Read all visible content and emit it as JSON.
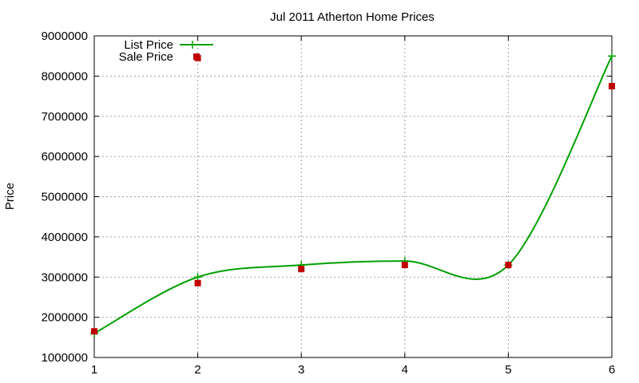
{
  "chart_data": {
    "type": "line",
    "title": "Jul 2011 Atherton Home Prices",
    "xlabel": "",
    "ylabel": "Price",
    "x": [
      1,
      2,
      3,
      4,
      5,
      6
    ],
    "xlim": [
      1,
      6
    ],
    "ylim": [
      1000000,
      9000000
    ],
    "xticks": [
      "1",
      "2",
      "3",
      "4",
      "5",
      "6"
    ],
    "yticks": [
      "1000000",
      "2000000",
      "3000000",
      "4000000",
      "5000000",
      "6000000",
      "7000000",
      "8000000",
      "9000000"
    ],
    "grid": true,
    "legend_position": "top-left",
    "series": [
      {
        "name": "List Price",
        "style": "smooth line with plus markers",
        "color": "#00a000",
        "values": [
          1600000,
          3000000,
          3300000,
          3400000,
          3300000,
          8500000
        ]
      },
      {
        "name": "Sale Price",
        "style": "square markers",
        "color": "#c00000",
        "values": [
          1650000,
          2850000,
          3200000,
          3300000,
          3300000,
          7750000,
          8450000
        ],
        "x": [
          1,
          2,
          3,
          4,
          5,
          6,
          2
        ]
      }
    ]
  }
}
